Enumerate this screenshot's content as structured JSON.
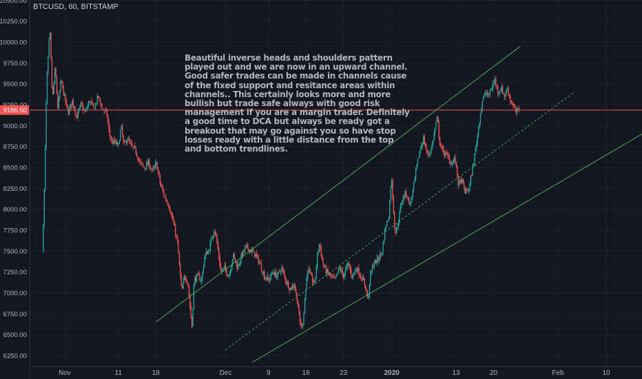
{
  "header": {
    "symbol": "BTCUSD, 60, BITSTAMP"
  },
  "annotation": {
    "text": "Beautiful inverse heads and shoulders pattern played out and we are now in an upward channel. Good safer trades can be made in channels cause of the fixed support and resitance areas within channels.. This certainly looks more and more bullish but trade safe always with good risk management if you are a margin trader. Definitely a good time to DCA but always be ready got a breakout that may go against you so have stop losses ready with a little distance from the top and bottom trendlines."
  },
  "colors": {
    "background": "#131722",
    "grid": "#1e222d",
    "axis_text": "#b2b5be",
    "up": "#26a69a",
    "down": "#ef5350",
    "price_line": "#ef5350",
    "channel": "#4caf50"
  },
  "chart_data": {
    "type": "candlestick",
    "title": "BTCUSD, 60, BITSTAMP",
    "y_ticks": [
      6250,
      6500,
      6750,
      7000,
      7250,
      7500,
      7750,
      8000,
      8250,
      8500,
      8750,
      9000,
      9250,
      9500,
      9750,
      10000,
      10250,
      10500
    ],
    "y_tick_labels": [
      "6250.00",
      "6500.00",
      "6750.00",
      "7000.00",
      "7250.00",
      "7500.00",
      "7750.00",
      "8000.00",
      "8250.00",
      "8500.00",
      "8750.00",
      "9000.00",
      "9250.00",
      "9500.00",
      "9750.00",
      "10000.00",
      "10250.00",
      "10500.00"
    ],
    "ylim": [
      6150,
      10520
    ],
    "x_range_days": [
      -4,
      95
    ],
    "x_ticks": [
      {
        "label": "Nov",
        "day": 0
      },
      {
        "label": "11",
        "day": 10
      },
      {
        "label": "18",
        "day": 17
      },
      {
        "label": "Dec",
        "day": 30
      },
      {
        "label": "9",
        "day": 38
      },
      {
        "label": "16",
        "day": 45
      },
      {
        "label": "23",
        "day": 52
      },
      {
        "label": "2020",
        "day": 61
      },
      {
        "label": "13",
        "day": 73
      },
      {
        "label": "20",
        "day": 80
      },
      {
        "label": "Feb",
        "day": 92
      },
      {
        "label": "10",
        "day": 101
      }
    ],
    "current_price": 9186.5,
    "current_price_label": "9186.50",
    "price_path": [
      [
        -4,
        7480
      ],
      [
        -3.6,
        8300
      ],
      [
        -3.2,
        9500
      ],
      [
        -2.6,
        10150
      ],
      [
        -2.1,
        9300
      ],
      [
        -1.6,
        9700
      ],
      [
        -1.1,
        9200
      ],
      [
        -0.5,
        9550
      ],
      [
        0,
        9380
      ],
      [
        0.8,
        9150
      ],
      [
        1.6,
        9300
      ],
      [
        2.4,
        9100
      ],
      [
        3.2,
        9250
      ],
      [
        4,
        9150
      ],
      [
        4.8,
        9300
      ],
      [
        5.6,
        9200
      ],
      [
        6.4,
        9350
      ],
      [
        7.2,
        9200
      ],
      [
        8,
        9150
      ],
      [
        8.5,
        8900
      ],
      [
        9,
        8800
      ],
      [
        9.6,
        8800
      ],
      [
        10.2,
        8750
      ],
      [
        10.7,
        9000
      ],
      [
        11.2,
        8750
      ],
      [
        11.8,
        8850
      ],
      [
        12.6,
        8750
      ],
      [
        13.4,
        8700
      ],
      [
        14.2,
        8550
      ],
      [
        15,
        8500
      ],
      [
        15.8,
        8550
      ],
      [
        16.6,
        8450
      ],
      [
        17.3,
        8550
      ],
      [
        18,
        8300
      ],
      [
        18.8,
        8150
      ],
      [
        19.6,
        8050
      ],
      [
        20.4,
        7850
      ],
      [
        21.2,
        7600
      ],
      [
        21.6,
        7300
      ],
      [
        22,
        7000
      ],
      [
        22.5,
        7200
      ],
      [
        23.1,
        7150
      ],
      [
        23.6,
        6800
      ],
      [
        23.9,
        6600
      ],
      [
        24.3,
        7150
      ],
      [
        25,
        7200
      ],
      [
        25.7,
        7150
      ],
      [
        26.3,
        7450
      ],
      [
        27,
        7500
      ],
      [
        27.6,
        7650
      ],
      [
        28.1,
        7780
      ],
      [
        28.7,
        7550
      ],
      [
        29.3,
        7250
      ],
      [
        30,
        7300
      ],
      [
        30.8,
        7200
      ],
      [
        31.6,
        7450
      ],
      [
        32.4,
        7300
      ],
      [
        33.2,
        7450
      ],
      [
        34,
        7550
      ],
      [
        35,
        7500
      ],
      [
        35.8,
        7450
      ],
      [
        36.6,
        7350
      ],
      [
        37.4,
        7200
      ],
      [
        38.2,
        7150
      ],
      [
        39,
        7250
      ],
      [
        39.8,
        7200
      ],
      [
        40.6,
        7300
      ],
      [
        41.4,
        7150
      ],
      [
        42.2,
        7050
      ],
      [
        43,
        7100
      ],
      [
        43.6,
        6900
      ],
      [
        44,
        6650
      ],
      [
        44.5,
        6580
      ],
      [
        45,
        6950
      ],
      [
        45.5,
        7300
      ],
      [
        46,
        7200
      ],
      [
        46.8,
        7100
      ],
      [
        47.3,
        7450
      ],
      [
        47.7,
        7600
      ],
      [
        48.3,
        7350
      ],
      [
        49,
        7250
      ],
      [
        49.8,
        7200
      ],
      [
        50.6,
        7150
      ],
      [
        51.4,
        7300
      ],
      [
        52.2,
        7200
      ],
      [
        53,
        7350
      ],
      [
        53.8,
        7200
      ],
      [
        54.6,
        7300
      ],
      [
        55.4,
        7200
      ],
      [
        56.2,
        7100
      ],
      [
        56.8,
        6900
      ],
      [
        57.1,
        7200
      ],
      [
        57.8,
        7350
      ],
      [
        58.6,
        7400
      ],
      [
        59.4,
        7500
      ],
      [
        60,
        7800
      ],
      [
        60.6,
        7900
      ],
      [
        61.1,
        8400
      ],
      [
        61.4,
        8100
      ],
      [
        61.8,
        7700
      ],
      [
        62.4,
        7850
      ],
      [
        63,
        8100
      ],
      [
        63.8,
        8200
      ],
      [
        64.6,
        8050
      ],
      [
        65.2,
        8250
      ],
      [
        65.8,
        8500
      ],
      [
        66.4,
        8700
      ],
      [
        67.1,
        8850
      ],
      [
        67.8,
        8650
      ],
      [
        68.5,
        8700
      ],
      [
        69.2,
        8950
      ],
      [
        69.7,
        9100
      ],
      [
        70.1,
        8800
      ],
      [
        70.6,
        8700
      ],
      [
        71.4,
        8650
      ],
      [
        72.2,
        8550
      ],
      [
        73,
        8600
      ],
      [
        73.6,
        8300
      ],
      [
        74.2,
        8350
      ],
      [
        74.9,
        8200
      ],
      [
        75.6,
        8250
      ],
      [
        76.3,
        8500
      ],
      [
        77,
        8800
      ],
      [
        77.6,
        9100
      ],
      [
        78.1,
        9300
      ],
      [
        78.7,
        9400
      ],
      [
        79.2,
        9350
      ],
      [
        79.8,
        9450
      ],
      [
        80.4,
        9550
      ],
      [
        81,
        9400
      ],
      [
        81.6,
        9450
      ],
      [
        82.2,
        9350
      ],
      [
        82.8,
        9450
      ],
      [
        83.3,
        9300
      ],
      [
        83.8,
        9250
      ],
      [
        84.3,
        9150
      ],
      [
        84.8,
        9190
      ]
    ],
    "channel_lines": [
      {
        "name": "upper",
        "style": "solid",
        "from": [
          17,
          6650
        ],
        "to": [
          85,
          9950
        ]
      },
      {
        "name": "middle",
        "style": "dashed",
        "from": [
          30,
          6320
        ],
        "to": [
          95,
          9400
        ]
      },
      {
        "name": "lower",
        "style": "solid",
        "from": [
          35,
          6170
        ],
        "to": [
          125,
          9550
        ]
      }
    ]
  }
}
